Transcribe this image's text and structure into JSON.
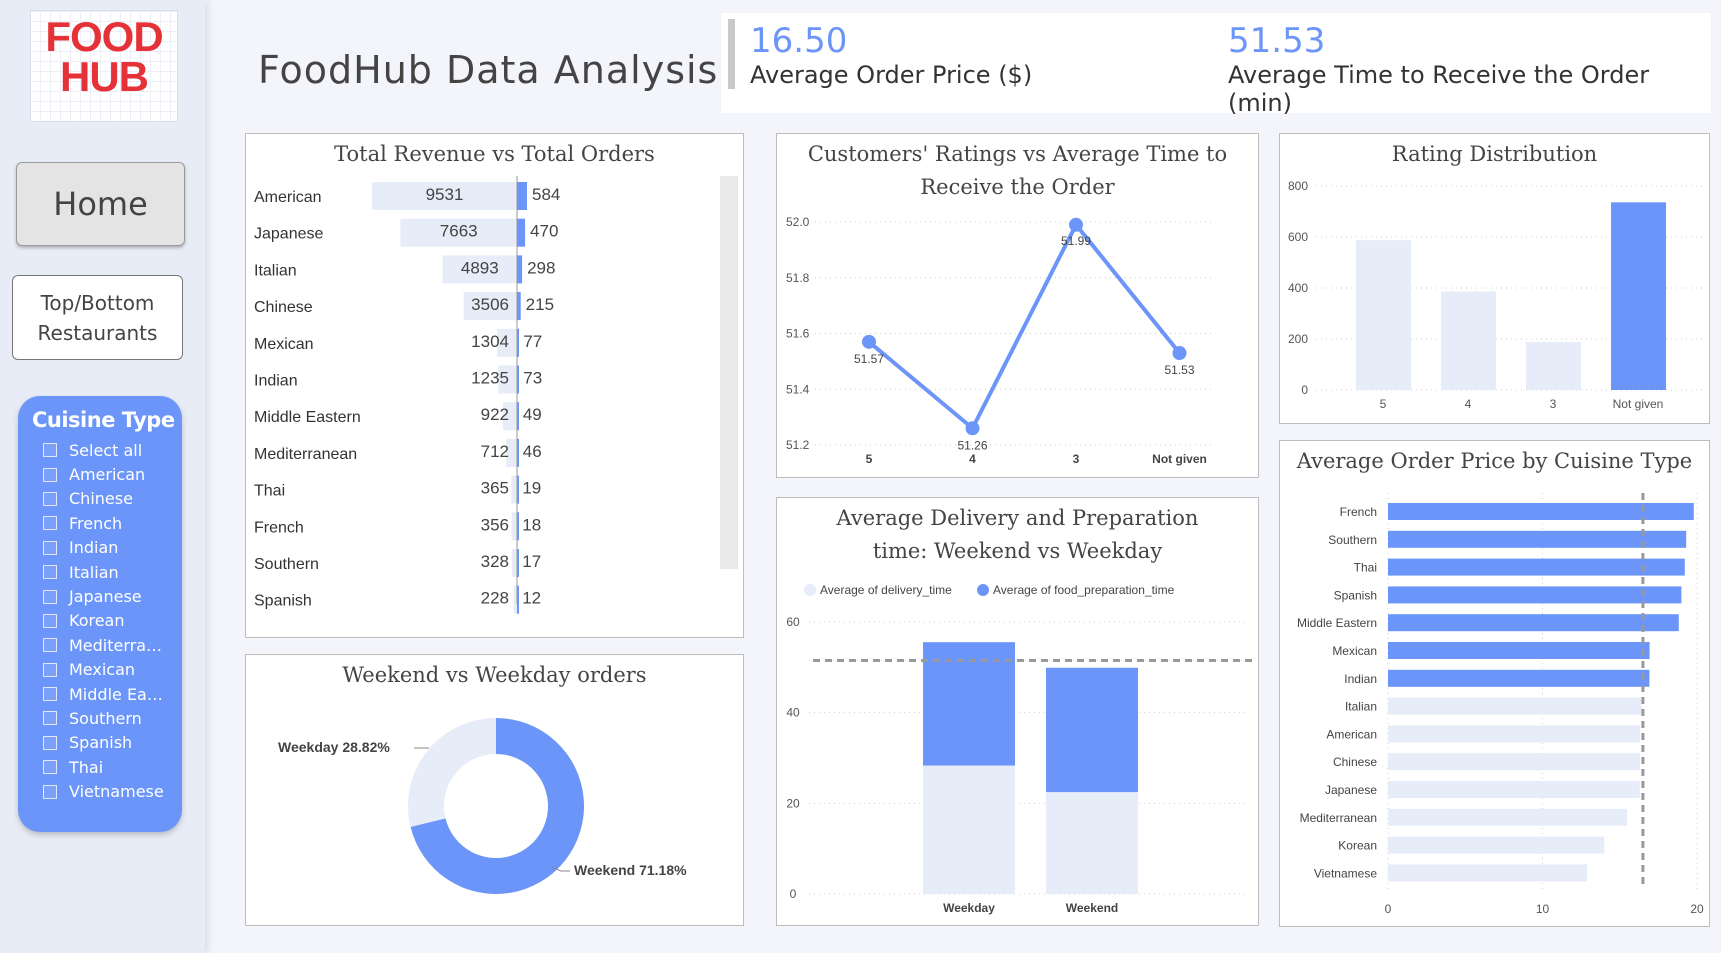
{
  "logo": {
    "line1": "FOOD",
    "line2": "HUB",
    "tm": "™"
  },
  "nav": {
    "home": "Home",
    "top_bottom": "Top/Bottom\nRestaurants"
  },
  "slicer": {
    "title": "Cuisine Type",
    "items": [
      "Select all",
      "American",
      "Chinese",
      "French",
      "Indian",
      "Italian",
      "Japanese",
      "Korean",
      "Mediterra…",
      "Mexican",
      "Middle Ea…",
      "Southern",
      "Spanish",
      "Thai",
      "Vietnamese"
    ]
  },
  "page_title": "FoodHub Data Analysis",
  "kpis": [
    {
      "value": "16.50",
      "label": "Average Order Price ($)"
    },
    {
      "value": "51.53",
      "label": "Average Time to Receive the Order (min)"
    }
  ],
  "colors": {
    "accent": "#6b95f8",
    "light": "#e6ecf8",
    "logo": "#e53238"
  },
  "chart_data": [
    {
      "type": "bar",
      "title": "Total Revenue vs Total Orders",
      "categories": [
        "American",
        "Japanese",
        "Italian",
        "Chinese",
        "Mexican",
        "Indian",
        "Middle Eastern",
        "Mediterranean",
        "Thai",
        "French",
        "Southern",
        "Spanish"
      ],
      "series": [
        {
          "values": [
            9531,
            7663,
            4893,
            3506,
            1304,
            1235,
            922,
            712,
            365,
            356,
            328,
            228
          ]
        },
        {
          "values": [
            584,
            470,
            298,
            215,
            77,
            73,
            49,
            46,
            19,
            18,
            17,
            12
          ]
        }
      ]
    },
    {
      "type": "line",
      "title": "Customers' Ratings vs Average Time to Receive the Order",
      "categories": [
        "5",
        "4",
        "3",
        "Not given"
      ],
      "values": [
        51.57,
        51.26,
        51.99,
        51.53
      ],
      "ylim": [
        51.2,
        52.0
      ],
      "yticks": [
        "51.2",
        "51.4",
        "51.6",
        "51.8",
        "52.0"
      ],
      "grid": true
    },
    {
      "type": "bar",
      "title": "Rating Distribution",
      "categories": [
        "5",
        "4",
        "3",
        "Not given"
      ],
      "values": [
        588,
        386,
        188,
        736
      ],
      "ylim": [
        0,
        800
      ],
      "yticks": [
        "0",
        "200",
        "400",
        "600",
        "800"
      ],
      "grid": true
    },
    {
      "type": "pie",
      "title": "Weekend vs Weekday orders",
      "slices": [
        {
          "label": "Weekday 28.82%",
          "value": 28.82
        },
        {
          "label": "Weekend 71.18%",
          "value": 71.18
        }
      ]
    },
    {
      "type": "bar",
      "title": "Average Delivery and Preparation time: Weekend vs Weekday",
      "categories": [
        "Weekday",
        "Weekend"
      ],
      "series": [
        {
          "name": "Average of delivery_time",
          "values": [
            28.34,
            22.47
          ]
        },
        {
          "name": "Average of food_preparation_time",
          "values": [
            27.21,
            27.44
          ]
        }
      ],
      "reference": 51.5,
      "ylim": [
        0,
        60
      ],
      "yticks": [
        "0",
        "20",
        "40",
        "60"
      ],
      "legend": "top"
    },
    {
      "type": "bar",
      "title": "Average Order Price by Cuisine Type",
      "categories": [
        "French",
        "Southern",
        "Thai",
        "Spanish",
        "Middle Eastern",
        "Mexican",
        "Indian",
        "Italian",
        "American",
        "Chinese",
        "Japanese",
        "Mediterranean",
        "Korean",
        "Vietnamese"
      ],
      "values": [
        19.79,
        19.3,
        19.21,
        18.99,
        18.82,
        16.93,
        16.92,
        16.42,
        16.32,
        16.31,
        16.3,
        15.47,
        14.0,
        12.88
      ],
      "reference": 16.5,
      "xlim": [
        0,
        20
      ],
      "xticks": [
        "0",
        "10",
        "20"
      ],
      "grid": true
    }
  ]
}
